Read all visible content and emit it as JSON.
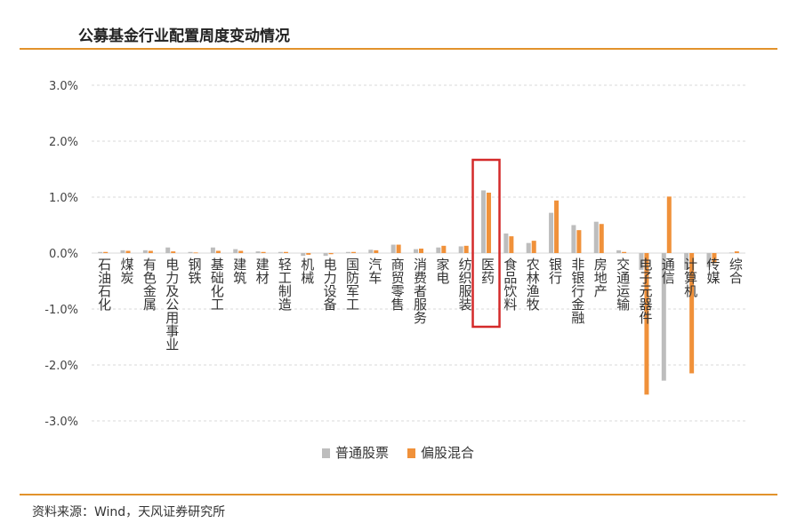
{
  "header": {
    "title": "公募基金行业配置周度变动情况"
  },
  "footer": {
    "source": "资料来源：Wind，天风证券研究所"
  },
  "colors": {
    "accent": "#e2922b",
    "series1": "#bdbdbd",
    "series2": "#f0913a",
    "highlight": "#d42a2a",
    "grid": "#d9d9d9"
  },
  "chart_data": {
    "type": "bar",
    "title": "",
    "xlabel": "",
    "ylabel": "",
    "ylim": [
      -3.0,
      3.0
    ],
    "yticks": [
      "3.0%",
      "2.0%",
      "1.0%",
      "0.0%",
      "-1.0%",
      "-2.0%",
      "-3.0%"
    ],
    "grid": true,
    "legend_position": "bottom",
    "highlighted_category": "医药",
    "categories": [
      "石油石化",
      "煤炭",
      "有色金属",
      "电力及公用事业",
      "钢铁",
      "基础化工",
      "建筑",
      "建材",
      "轻工制造",
      "机械",
      "电力设备",
      "国防军工",
      "汽车",
      "商贸零售",
      "消费者服务",
      "家电",
      "纺织服装",
      "医药",
      "食品饮料",
      "农林渔牧",
      "银行",
      "非银行金融",
      "房地产",
      "交通运输",
      "电子元器件",
      "通信",
      "计算机",
      "传媒",
      "综合"
    ],
    "series": [
      {
        "name": "普通股票",
        "values": [
          0.02,
          0.05,
          0.05,
          0.1,
          0.02,
          0.1,
          0.07,
          0.03,
          0.02,
          -0.05,
          -0.05,
          0.02,
          0.06,
          0.15,
          0.07,
          0.1,
          0.12,
          1.12,
          0.35,
          0.18,
          0.72,
          0.5,
          0.56,
          0.05,
          -0.3,
          -2.28,
          -0.3,
          -0.25,
          0.01
        ]
      },
      {
        "name": "偏股混合",
        "values": [
          0.02,
          0.04,
          0.04,
          0.03,
          0.01,
          0.04,
          0.04,
          0.02,
          0.02,
          -0.03,
          -0.02,
          0.02,
          0.05,
          0.15,
          0.08,
          0.13,
          0.13,
          1.08,
          0.3,
          0.22,
          0.94,
          0.41,
          0.52,
          0.02,
          -2.53,
          1.01,
          -2.15,
          -0.18,
          0.03
        ]
      }
    ]
  }
}
